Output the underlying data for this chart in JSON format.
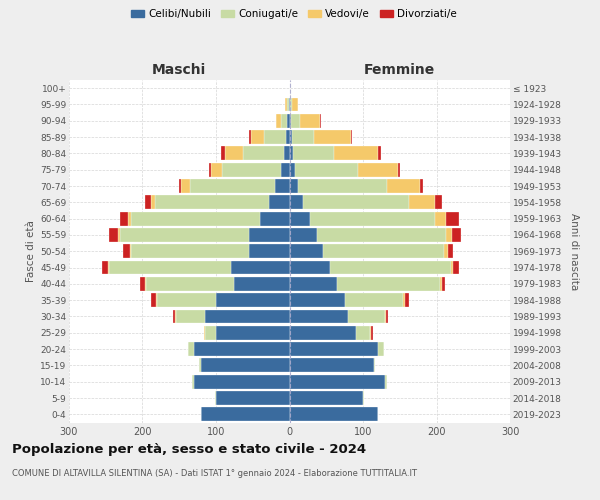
{
  "age_groups": [
    "0-4",
    "5-9",
    "10-14",
    "15-19",
    "20-24",
    "25-29",
    "30-34",
    "35-39",
    "40-44",
    "45-49",
    "50-54",
    "55-59",
    "60-64",
    "65-69",
    "70-74",
    "75-79",
    "80-84",
    "85-89",
    "90-94",
    "95-99",
    "100+"
  ],
  "birth_years": [
    "2019-2023",
    "2014-2018",
    "2009-2013",
    "2004-2008",
    "1999-2003",
    "1994-1998",
    "1989-1993",
    "1984-1988",
    "1979-1983",
    "1974-1978",
    "1969-1973",
    "1964-1968",
    "1959-1963",
    "1954-1958",
    "1949-1953",
    "1944-1948",
    "1939-1943",
    "1934-1938",
    "1929-1933",
    "1924-1928",
    "≤ 1923"
  ],
  "maschi": {
    "celibi": [
      120,
      100,
      130,
      120,
      130,
      100,
      115,
      100,
      75,
      80,
      55,
      55,
      40,
      28,
      20,
      12,
      8,
      5,
      3,
      1,
      0
    ],
    "coniugati": [
      0,
      1,
      2,
      3,
      8,
      15,
      40,
      80,
      120,
      165,
      160,
      175,
      175,
      155,
      115,
      80,
      55,
      30,
      8,
      3,
      0
    ],
    "vedovi": [
      0,
      0,
      0,
      0,
      0,
      1,
      1,
      2,
      2,
      2,
      2,
      3,
      5,
      5,
      12,
      15,
      25,
      18,
      8,
      2,
      0
    ],
    "divorziati": [
      0,
      0,
      0,
      0,
      0,
      1,
      2,
      6,
      6,
      8,
      10,
      12,
      10,
      8,
      3,
      2,
      5,
      2,
      0,
      0,
      0
    ]
  },
  "femmine": {
    "nubili": [
      120,
      100,
      130,
      115,
      120,
      90,
      80,
      75,
      65,
      55,
      45,
      38,
      28,
      18,
      12,
      8,
      5,
      3,
      2,
      1,
      0
    ],
    "coniugate": [
      0,
      1,
      2,
      2,
      8,
      20,
      50,
      80,
      140,
      165,
      165,
      175,
      170,
      145,
      120,
      85,
      55,
      30,
      12,
      3,
      0
    ],
    "vedove": [
      0,
      0,
      0,
      0,
      0,
      1,
      1,
      2,
      2,
      3,
      5,
      8,
      15,
      35,
      45,
      55,
      60,
      50,
      28,
      8,
      1
    ],
    "divorziate": [
      0,
      0,
      0,
      0,
      1,
      2,
      3,
      5,
      5,
      8,
      8,
      12,
      18,
      10,
      5,
      3,
      5,
      2,
      1,
      0,
      0
    ]
  },
  "colors": {
    "celibi": "#3a6b9e",
    "coniugati": "#c8dba4",
    "vedovi": "#f5c96a",
    "divorziati": "#cc2222"
  },
  "title": "Popolazione per età, sesso e stato civile - 2024",
  "subtitle": "COMUNE DI ALTAVILLA SILENTINA (SA) - Dati ISTAT 1° gennaio 2024 - Elaborazione TUTTITALIA.IT",
  "xlabel_left": "Maschi",
  "xlabel_right": "Femmine",
  "ylabel_left": "Fasce di età",
  "ylabel_right": "Anni di nascita",
  "xlim": 300,
  "bg_color": "#eeeeee",
  "plot_bg": "#ffffff"
}
